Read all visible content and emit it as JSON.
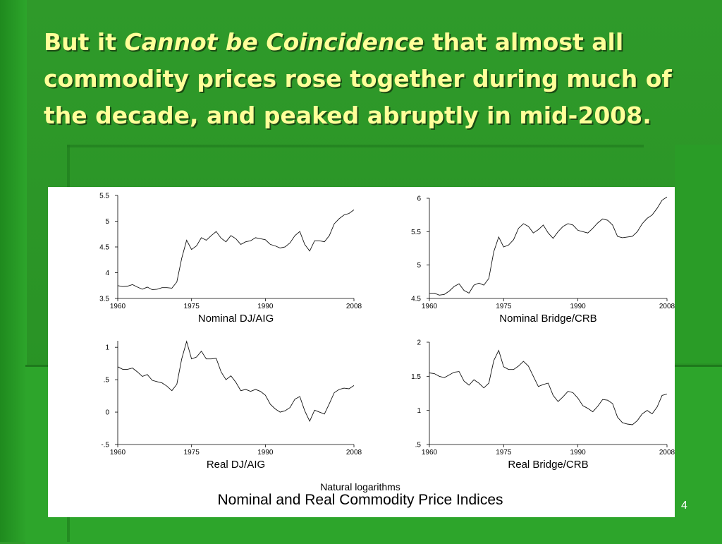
{
  "slide": {
    "title_part1": "But it ",
    "title_emph": "Cannot be Coincidence",
    "title_part2": " that almost all commodity prices rose together during much of the decade, and peaked abruptly in mid-2008.",
    "page_number": "4"
  },
  "figure": {
    "subtitle": "Natural logarithms",
    "title": "Nominal and Real Commodity Price Indices"
  },
  "chart_data": [
    {
      "type": "line",
      "title": "Nominal DJ/AIG",
      "xlabel": "",
      "ylabel": "",
      "xlim": [
        1960,
        2008
      ],
      "ylim": [
        3.5,
        5.5
      ],
      "xticks": [
        1960,
        1975,
        1990,
        2008
      ],
      "yticks": [
        3.5,
        4,
        4.5,
        5,
        5.5
      ],
      "ytick_labels": [
        "3.5",
        "4",
        "4.5",
        "5",
        "5.5"
      ],
      "x": [
        1960,
        1961,
        1962,
        1963,
        1964,
        1965,
        1966,
        1967,
        1968,
        1969,
        1970,
        1971,
        1972,
        1973,
        1974,
        1975,
        1976,
        1977,
        1978,
        1979,
        1980,
        1981,
        1982,
        1983,
        1984,
        1985,
        1986,
        1987,
        1988,
        1989,
        1990,
        1991,
        1992,
        1993,
        1994,
        1995,
        1996,
        1997,
        1998,
        1999,
        2000,
        2001,
        2002,
        2003,
        2004,
        2005,
        2006,
        2007,
        2008
      ],
      "values": [
        3.75,
        3.73,
        3.74,
        3.77,
        3.72,
        3.68,
        3.72,
        3.67,
        3.68,
        3.71,
        3.71,
        3.7,
        3.82,
        4.28,
        4.63,
        4.45,
        4.52,
        4.68,
        4.63,
        4.72,
        4.8,
        4.67,
        4.6,
        4.72,
        4.66,
        4.55,
        4.6,
        4.62,
        4.68,
        4.66,
        4.64,
        4.55,
        4.52,
        4.48,
        4.5,
        4.58,
        4.72,
        4.8,
        4.55,
        4.42,
        4.62,
        4.62,
        4.6,
        4.72,
        4.95,
        5.05,
        5.12,
        5.15,
        5.22
      ]
    },
    {
      "type": "line",
      "title": "Nominal Bridge/CRB",
      "xlabel": "",
      "ylabel": "",
      "xlim": [
        1960,
        2008
      ],
      "ylim": [
        4.5,
        6
      ],
      "xticks": [
        1960,
        1975,
        1990,
        2008
      ],
      "yticks": [
        4.5,
        5,
        5.5,
        6
      ],
      "ytick_labels": [
        "4.5",
        "5",
        "5.5",
        "6"
      ],
      "x": [
        1960,
        1961,
        1962,
        1963,
        1964,
        1965,
        1966,
        1967,
        1968,
        1969,
        1970,
        1971,
        1972,
        1973,
        1974,
        1975,
        1976,
        1977,
        1978,
        1979,
        1980,
        1981,
        1982,
        1983,
        1984,
        1985,
        1986,
        1987,
        1988,
        1989,
        1990,
        1991,
        1992,
        1993,
        1994,
        1995,
        1996,
        1997,
        1998,
        1999,
        2000,
        2001,
        2002,
        2003,
        2004,
        2005,
        2006,
        2007,
        2008
      ],
      "values": [
        4.58,
        4.58,
        4.55,
        4.56,
        4.61,
        4.68,
        4.72,
        4.62,
        4.58,
        4.7,
        4.73,
        4.7,
        4.8,
        5.2,
        5.42,
        5.27,
        5.3,
        5.38,
        5.55,
        5.62,
        5.58,
        5.48,
        5.53,
        5.6,
        5.48,
        5.4,
        5.5,
        5.58,
        5.62,
        5.6,
        5.52,
        5.5,
        5.48,
        5.55,
        5.63,
        5.69,
        5.67,
        5.6,
        5.43,
        5.41,
        5.42,
        5.43,
        5.5,
        5.62,
        5.7,
        5.75,
        5.85,
        5.97,
        6.02
      ]
    },
    {
      "type": "line",
      "title": "Real DJ/AIG",
      "xlabel": "",
      "ylabel": "",
      "xlim": [
        1960,
        2008
      ],
      "ylim": [
        -0.5,
        1.1
      ],
      "xticks": [
        1960,
        1975,
        1990,
        2008
      ],
      "yticks": [
        -0.5,
        0,
        0.5,
        1
      ],
      "ytick_labels": [
        "-.5",
        "0",
        ".5",
        "1"
      ],
      "x": [
        1960,
        1961,
        1962,
        1963,
        1964,
        1965,
        1966,
        1967,
        1968,
        1969,
        1970,
        1971,
        1972,
        1973,
        1974,
        1975,
        1976,
        1977,
        1978,
        1979,
        1980,
        1981,
        1982,
        1983,
        1984,
        1985,
        1986,
        1987,
        1988,
        1989,
        1990,
        1991,
        1992,
        1993,
        1994,
        1995,
        1996,
        1997,
        1998,
        1999,
        2000,
        2001,
        2002,
        2003,
        2004,
        2005,
        2006,
        2007,
        2008
      ],
      "values": [
        0.7,
        0.66,
        0.66,
        0.68,
        0.62,
        0.55,
        0.58,
        0.49,
        0.47,
        0.45,
        0.4,
        0.33,
        0.43,
        0.82,
        1.09,
        0.82,
        0.85,
        0.94,
        0.82,
        0.82,
        0.83,
        0.62,
        0.5,
        0.56,
        0.46,
        0.33,
        0.35,
        0.32,
        0.35,
        0.32,
        0.26,
        0.12,
        0.05,
        0.0,
        0.02,
        0.07,
        0.2,
        0.24,
        0.02,
        -0.14,
        0.03,
        0.0,
        -0.03,
        0.13,
        0.3,
        0.35,
        0.37,
        0.36,
        0.41
      ]
    },
    {
      "type": "line",
      "title": "Real Bridge/CRB",
      "xlabel": "",
      "ylabel": "",
      "xlim": [
        1960,
        2008
      ],
      "ylim": [
        0.5,
        2
      ],
      "xticks": [
        1960,
        1975,
        1990,
        2008
      ],
      "yticks": [
        0.5,
        1,
        1.5,
        2
      ],
      "ytick_labels": [
        ".5",
        "1",
        "1.5",
        "2"
      ],
      "x": [
        1960,
        1961,
        1962,
        1963,
        1964,
        1965,
        1966,
        1967,
        1968,
        1969,
        1970,
        1971,
        1972,
        1973,
        1974,
        1975,
        1976,
        1977,
        1978,
        1979,
        1980,
        1981,
        1982,
        1983,
        1984,
        1985,
        1986,
        1987,
        1988,
        1989,
        1990,
        1991,
        1992,
        1993,
        1994,
        1995,
        1996,
        1997,
        1998,
        1999,
        2000,
        2001,
        2002,
        2003,
        2004,
        2005,
        2006,
        2007,
        2008
      ],
      "values": [
        1.55,
        1.54,
        1.5,
        1.48,
        1.52,
        1.56,
        1.57,
        1.43,
        1.37,
        1.45,
        1.4,
        1.33,
        1.4,
        1.73,
        1.88,
        1.64,
        1.6,
        1.6,
        1.65,
        1.72,
        1.65,
        1.5,
        1.35,
        1.38,
        1.4,
        1.22,
        1.13,
        1.2,
        1.28,
        1.26,
        1.18,
        1.07,
        1.03,
        0.98,
        1.06,
        1.16,
        1.15,
        1.1,
        0.9,
        0.82,
        0.8,
        0.79,
        0.85,
        0.95,
        1.0,
        0.95,
        1.05,
        1.22,
        1.24
      ]
    }
  ]
}
